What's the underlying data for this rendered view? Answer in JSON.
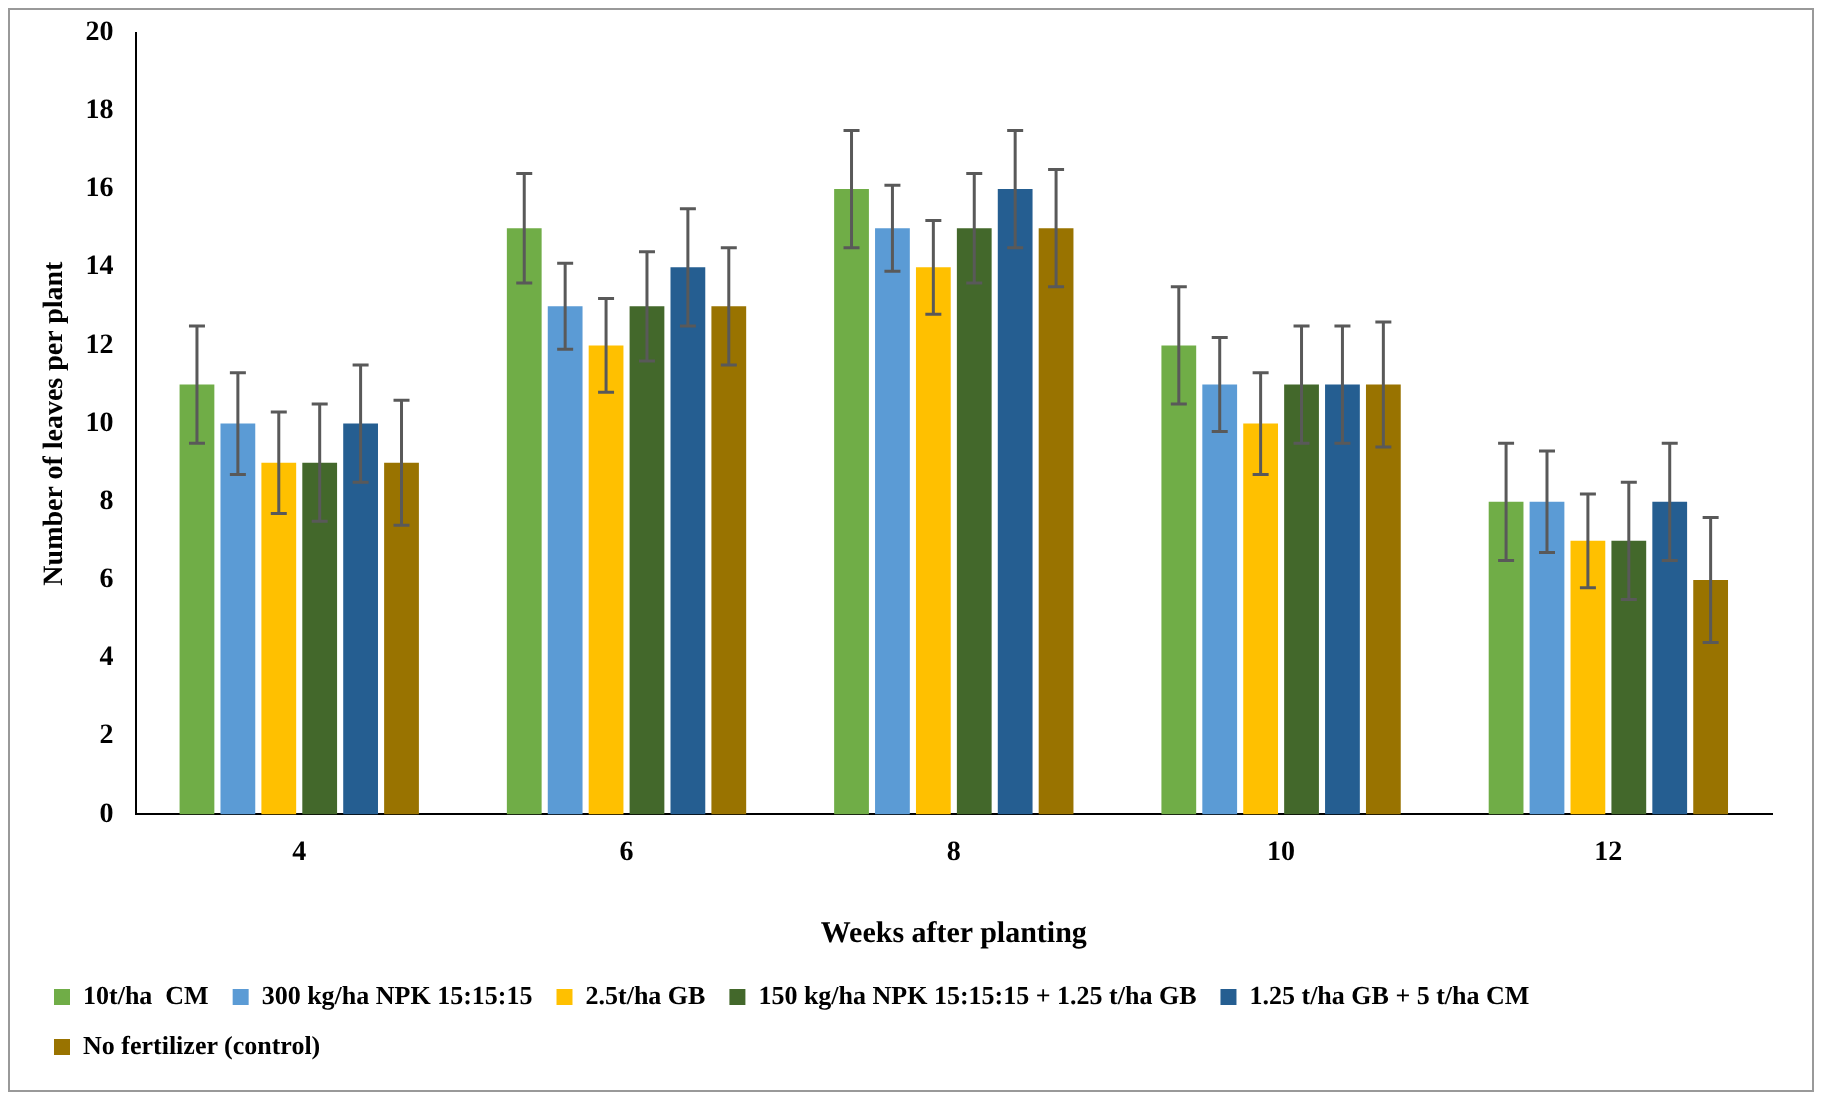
{
  "chart_data": {
    "type": "bar",
    "xlabel": "Weeks after planting",
    "ylabel": "Number of leaves per plant",
    "categories": [
      "4",
      "6",
      "8",
      "10",
      "12"
    ],
    "series": [
      {
        "name": "10t/ha  CM",
        "color": "#70ad47",
        "values": [
          11,
          15,
          16,
          12,
          8
        ],
        "errors": [
          1.5,
          1.4,
          1.5,
          1.5,
          1.5
        ]
      },
      {
        "name": "300 kg/ha NPK 15:15:15",
        "color": "#5b9bd5",
        "values": [
          10,
          13,
          15,
          11,
          8
        ],
        "errors": [
          1.3,
          1.1,
          1.1,
          1.2,
          1.3
        ]
      },
      {
        "name": "2.5t/ha GB",
        "color": "#ffc000",
        "values": [
          9,
          12,
          14,
          10,
          7
        ],
        "errors": [
          1.3,
          1.2,
          1.2,
          1.3,
          1.2
        ]
      },
      {
        "name": "150 kg/ha NPK 15:15:15 + 1.25 t/ha GB",
        "color": "#43682b",
        "values": [
          9,
          13,
          15,
          11,
          7
        ],
        "errors": [
          1.5,
          1.4,
          1.4,
          1.5,
          1.5
        ]
      },
      {
        "name": "1.25 t/ha GB + 5 t/ha CM",
        "color": "#255e91",
        "values": [
          10,
          14,
          16,
          11,
          8
        ],
        "errors": [
          1.5,
          1.5,
          1.5,
          1.5,
          1.5
        ]
      },
      {
        "name": "No fertilizer (control)",
        "color": "#997300",
        "values": [
          9,
          13,
          15,
          11,
          6
        ],
        "errors": [
          1.6,
          1.5,
          1.5,
          1.6,
          1.6
        ]
      }
    ],
    "ylim": [
      0,
      20
    ],
    "yticks": [
      0,
      2,
      4,
      6,
      8,
      10,
      12,
      14,
      16,
      18,
      20
    ],
    "grid": false,
    "legend": "bottom"
  }
}
